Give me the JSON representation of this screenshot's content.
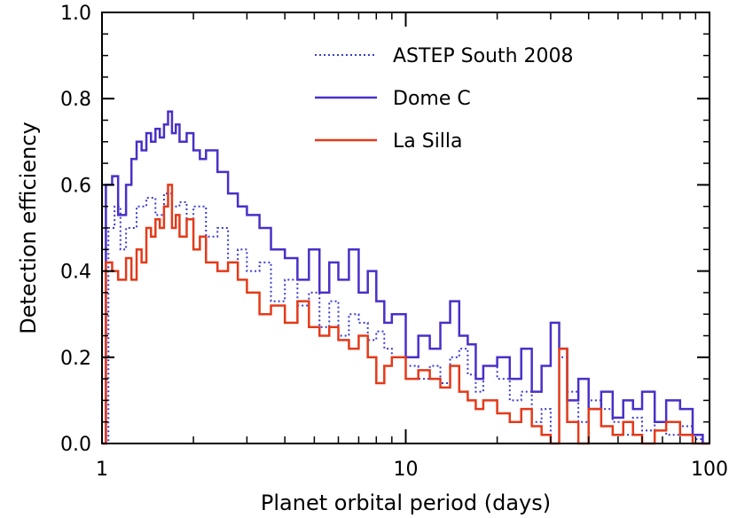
{
  "chart_data": {
    "type": "line",
    "step": true,
    "title": "",
    "xlabel": "Planet orbital period (days)",
    "ylabel": "Detection efficiency",
    "xscale": "log",
    "xlim": [
      1,
      100
    ],
    "ylim": [
      0,
      1.0
    ],
    "xticks": [
      1,
      10,
      100
    ],
    "xtick_labels": [
      "1",
      "10",
      "100"
    ],
    "yticks": [
      0.0,
      0.2,
      0.4,
      0.6,
      0.8,
      1.0
    ],
    "ytick_labels": [
      "0.0",
      "0.2",
      "0.4",
      "0.6",
      "0.8",
      "1.0"
    ],
    "grid": false,
    "legend_position": "top-right",
    "series": [
      {
        "name": "ASTEP South 2008",
        "color": "#3a3ad0",
        "style": "dotted",
        "x": [
          1.0,
          1.05,
          1.1,
          1.15,
          1.2,
          1.3,
          1.4,
          1.5,
          1.6,
          1.7,
          1.8,
          1.9,
          2.0,
          2.2,
          2.4,
          2.6,
          2.8,
          3.0,
          3.3,
          3.6,
          4.0,
          4.4,
          4.8,
          5.2,
          5.6,
          6.0,
          6.5,
          7.0,
          7.5,
          8.0,
          8.5,
          9.0,
          10.0,
          11.0,
          12.0,
          13.0,
          14.0,
          15.0,
          16.0,
          17.0,
          18.0,
          20.0,
          22.0,
          24.0,
          26.0,
          28.0,
          30.0,
          32.0,
          34.0,
          37.0,
          40.0,
          44.0,
          48.0,
          52.0,
          56.0,
          60.0,
          66.0,
          72.0,
          80.0,
          88.0,
          95.0
        ],
        "y": [
          0.0,
          0.5,
          0.55,
          0.45,
          0.5,
          0.55,
          0.57,
          0.53,
          0.58,
          0.55,
          0.56,
          0.52,
          0.55,
          0.48,
          0.5,
          0.42,
          0.45,
          0.4,
          0.42,
          0.33,
          0.38,
          0.32,
          0.35,
          0.27,
          0.33,
          0.25,
          0.3,
          0.28,
          0.24,
          0.26,
          0.22,
          0.2,
          0.18,
          0.15,
          0.18,
          0.14,
          0.2,
          0.22,
          0.16,
          0.12,
          0.18,
          0.15,
          0.1,
          0.12,
          0.05,
          0.08,
          0.0,
          0.2,
          0.12,
          0.05,
          0.1,
          0.08,
          0.05,
          0.02,
          0.06,
          0.03,
          0.05,
          0.02,
          0.04,
          0.01,
          0.0
        ]
      },
      {
        "name": "Dome C",
        "color": "#4a2fc8",
        "style": "solid",
        "x": [
          1.0,
          1.03,
          1.08,
          1.13,
          1.2,
          1.25,
          1.3,
          1.35,
          1.4,
          1.45,
          1.5,
          1.55,
          1.6,
          1.65,
          1.7,
          1.75,
          1.8,
          1.9,
          2.0,
          2.1,
          2.2,
          2.4,
          2.6,
          2.8,
          3.0,
          3.3,
          3.6,
          4.0,
          4.4,
          4.8,
          5.2,
          5.6,
          6.0,
          6.5,
          7.0,
          7.5,
          8.0,
          8.5,
          9.0,
          10.0,
          11.0,
          12.0,
          13.0,
          14.0,
          15.0,
          16.0,
          17.0,
          18.0,
          20.0,
          22.0,
          24.0,
          26.0,
          28.0,
          30.0,
          32.0,
          34.0,
          37.0,
          40.0,
          44.0,
          48.0,
          52.0,
          56.0,
          60.0,
          66.0,
          72.0,
          80.0,
          88.0,
          95.0
        ],
        "y": [
          0.0,
          0.6,
          0.62,
          0.53,
          0.6,
          0.66,
          0.7,
          0.68,
          0.72,
          0.7,
          0.73,
          0.71,
          0.74,
          0.77,
          0.72,
          0.74,
          0.7,
          0.72,
          0.68,
          0.66,
          0.68,
          0.63,
          0.58,
          0.55,
          0.53,
          0.5,
          0.45,
          0.43,
          0.38,
          0.45,
          0.35,
          0.42,
          0.38,
          0.45,
          0.35,
          0.4,
          0.33,
          0.28,
          0.3,
          0.2,
          0.25,
          0.22,
          0.28,
          0.33,
          0.25,
          0.23,
          0.15,
          0.18,
          0.2,
          0.15,
          0.22,
          0.12,
          0.18,
          0.28,
          0.22,
          0.1,
          0.15,
          0.08,
          0.12,
          0.06,
          0.1,
          0.08,
          0.12,
          0.05,
          0.1,
          0.08,
          0.02,
          0.0
        ]
      },
      {
        "name": "La Silla",
        "color": "#e33a1a",
        "style": "solid",
        "x": [
          1.0,
          1.03,
          1.08,
          1.13,
          1.2,
          1.25,
          1.3,
          1.35,
          1.4,
          1.45,
          1.5,
          1.55,
          1.6,
          1.65,
          1.7,
          1.75,
          1.8,
          1.9,
          2.0,
          2.1,
          2.2,
          2.4,
          2.6,
          2.8,
          3.0,
          3.3,
          3.6,
          4.0,
          4.4,
          4.8,
          5.2,
          5.6,
          6.0,
          6.5,
          7.0,
          7.5,
          8.0,
          8.5,
          9.0,
          10.0,
          11.0,
          12.0,
          13.0,
          14.0,
          15.0,
          16.0,
          17.0,
          18.0,
          20.0,
          22.0,
          24.0,
          26.0,
          28.0,
          30.0,
          32.0,
          34.0,
          37.0,
          40.0,
          44.0,
          48.0,
          52.0,
          56.0,
          60.0,
          66.0,
          72.0,
          80.0,
          88.0,
          95.0
        ],
        "y": [
          0.0,
          0.42,
          0.4,
          0.38,
          0.43,
          0.38,
          0.45,
          0.42,
          0.5,
          0.48,
          0.52,
          0.5,
          0.55,
          0.6,
          0.5,
          0.53,
          0.48,
          0.52,
          0.45,
          0.48,
          0.42,
          0.4,
          0.42,
          0.38,
          0.35,
          0.3,
          0.32,
          0.28,
          0.33,
          0.27,
          0.25,
          0.27,
          0.24,
          0.22,
          0.25,
          0.2,
          0.14,
          0.18,
          0.2,
          0.15,
          0.17,
          0.15,
          0.13,
          0.18,
          0.12,
          0.1,
          0.08,
          0.1,
          0.07,
          0.05,
          0.08,
          0.04,
          0.02,
          0.0,
          0.22,
          0.05,
          0.0,
          0.08,
          0.04,
          0.02,
          0.05,
          0.02,
          0.0,
          0.03,
          0.05,
          0.02,
          0.0,
          0.0
        ]
      }
    ]
  }
}
